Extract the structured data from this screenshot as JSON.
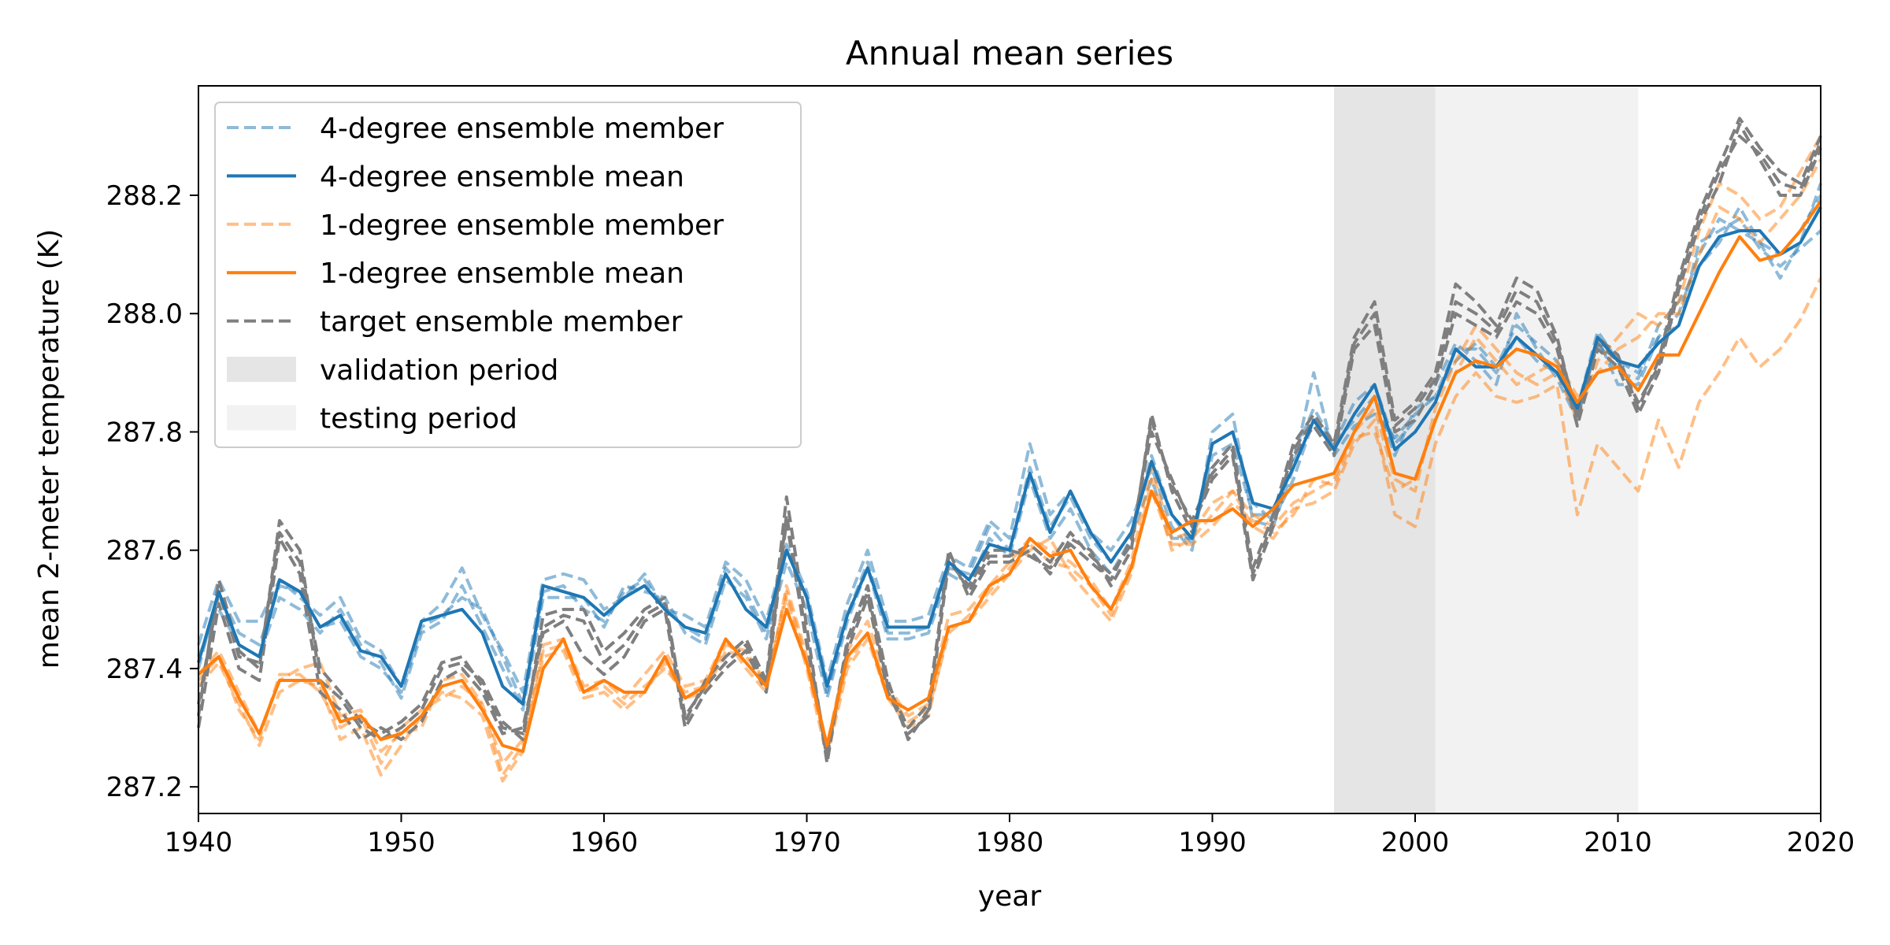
{
  "chart_data": {
    "type": "line",
    "title": "Annual mean series",
    "xlabel": "year",
    "ylabel": "mean 2-meter temperature (K)",
    "xlim": [
      1940,
      2020
    ],
    "ylim": [
      287.155,
      288.385
    ],
    "xticks": [
      1940,
      1950,
      1960,
      1970,
      1980,
      1990,
      2000,
      2010,
      2020
    ],
    "yticks": [
      287.2,
      287.4,
      287.6,
      287.8,
      288.0,
      288.2
    ],
    "xtick_labels": [
      "1940",
      "1950",
      "1960",
      "1970",
      "1980",
      "1990",
      "2000",
      "2010",
      "2020"
    ],
    "ytick_labels": [
      "287.2",
      "287.4",
      "287.6",
      "287.8",
      "288.0",
      "288.2"
    ],
    "grid": false,
    "legend_position": "top-left",
    "shaded_periods": [
      {
        "name": "validation period",
        "x_start": 1996,
        "x_end": 2001,
        "color": "#e5e5e5"
      },
      {
        "name": "testing period",
        "x_start": 2001,
        "x_end": 2011,
        "color": "#f2f2f2"
      }
    ],
    "x_start": 1940,
    "series": [
      {
        "name": "4-degree ensemble member",
        "group": "member4",
        "color": "#1f77b4",
        "opacity": 0.5,
        "dash": true,
        "legend": true,
        "values": [
          287.44,
          287.55,
          287.48,
          287.48,
          287.55,
          287.52,
          287.49,
          287.52,
          287.45,
          287.43,
          287.37,
          287.48,
          287.51,
          287.57,
          287.49,
          287.43,
          287.36,
          287.55,
          287.56,
          287.55,
          287.5,
          287.52,
          287.56,
          287.5,
          287.49,
          287.47,
          287.58,
          287.55,
          287.48,
          287.61,
          287.53,
          287.38,
          287.51,
          287.6,
          287.48,
          287.48,
          287.49,
          287.59,
          287.57,
          287.65,
          287.62,
          287.78,
          287.66,
          287.7,
          287.63,
          287.6,
          287.65,
          287.74,
          287.64,
          287.6,
          287.8,
          287.83,
          287.65,
          287.64,
          287.74,
          287.9,
          287.76,
          287.81,
          287.83,
          287.79,
          287.83,
          287.86,
          287.92,
          287.95,
          287.91,
          287.98,
          287.95,
          287.92,
          287.84,
          287.97,
          287.92,
          287.9,
          287.96,
          287.98,
          288.12,
          288.14,
          288.16,
          288.11,
          288.08,
          288.11,
          288.14
        ]
      },
      {
        "name": "4-degree ensemble member",
        "group": "member4",
        "color": "#1f77b4",
        "opacity": 0.5,
        "dash": true,
        "legend": false,
        "values": [
          287.42,
          287.5,
          287.44,
          287.42,
          287.52,
          287.5,
          287.46,
          287.5,
          287.44,
          287.41,
          287.35,
          287.46,
          287.48,
          287.54,
          287.47,
          287.4,
          287.33,
          287.52,
          287.52,
          287.52,
          287.47,
          287.54,
          287.53,
          287.52,
          287.46,
          287.44,
          287.55,
          287.52,
          287.45,
          287.58,
          287.5,
          287.35,
          287.48,
          287.57,
          287.45,
          287.45,
          287.46,
          287.56,
          287.54,
          287.62,
          287.59,
          287.72,
          287.62,
          287.67,
          287.6,
          287.56,
          287.62,
          287.72,
          287.62,
          287.62,
          287.76,
          287.78,
          287.66,
          287.66,
          287.76,
          287.84,
          287.78,
          287.85,
          287.88,
          287.78,
          287.82,
          287.88,
          287.95,
          287.92,
          287.88,
          288.0,
          287.94,
          287.89,
          287.82,
          287.96,
          287.88,
          287.88,
          287.96,
          288.0,
          288.1,
          288.16,
          288.14,
          288.12,
          288.1,
          288.14,
          288.2
        ]
      },
      {
        "name": "4-degree ensemble member",
        "group": "member4",
        "color": "#1f77b4",
        "opacity": 0.5,
        "dash": true,
        "legend": false,
        "values": [
          287.4,
          287.53,
          287.46,
          287.44,
          287.54,
          287.53,
          287.47,
          287.48,
          287.42,
          287.4,
          287.36,
          287.47,
          287.49,
          287.52,
          287.5,
          287.42,
          287.34,
          287.53,
          287.54,
          287.5,
          287.48,
          287.53,
          287.55,
          287.5,
          287.47,
          287.45,
          287.57,
          287.53,
          287.46,
          287.6,
          287.52,
          287.36,
          287.49,
          287.58,
          287.46,
          287.46,
          287.47,
          287.57,
          287.56,
          287.64,
          287.6,
          287.74,
          287.64,
          287.69,
          287.62,
          287.58,
          287.63,
          287.76,
          287.66,
          287.61,
          287.78,
          287.8,
          287.68,
          287.65,
          287.72,
          287.82,
          287.78,
          287.82,
          287.86,
          287.76,
          287.84,
          287.86,
          287.94,
          287.94,
          287.9,
          287.96,
          287.92,
          287.9,
          287.83,
          287.95,
          287.9,
          287.89,
          287.98,
          288.02,
          288.08,
          288.12,
          288.18,
          288.12,
          288.06,
          288.12,
          288.22
        ]
      },
      {
        "name": "4-degree ensemble mean",
        "group": "mean4",
        "color": "#1f77b4",
        "opacity": 1,
        "dash": false,
        "legend": true,
        "values": [
          287.41,
          287.53,
          287.44,
          287.42,
          287.55,
          287.53,
          287.47,
          287.49,
          287.43,
          287.42,
          287.37,
          287.48,
          287.49,
          287.5,
          287.46,
          287.37,
          287.34,
          287.54,
          287.53,
          287.52,
          287.49,
          287.52,
          287.54,
          287.5,
          287.47,
          287.46,
          287.56,
          287.5,
          287.47,
          287.6,
          287.52,
          287.37,
          287.49,
          287.57,
          287.47,
          287.47,
          287.47,
          287.58,
          287.55,
          287.61,
          287.6,
          287.73,
          287.63,
          287.7,
          287.63,
          287.58,
          287.63,
          287.75,
          287.66,
          287.62,
          287.78,
          287.8,
          287.68,
          287.67,
          287.74,
          287.82,
          287.77,
          287.83,
          287.88,
          287.77,
          287.8,
          287.85,
          287.94,
          287.91,
          287.91,
          287.96,
          287.93,
          287.9,
          287.84,
          287.96,
          287.92,
          287.91,
          287.95,
          287.98,
          288.08,
          288.13,
          288.14,
          288.14,
          288.1,
          288.12,
          288.18
        ]
      },
      {
        "name": "1-degree ensemble member",
        "group": "member1",
        "color": "#ff7f0e",
        "opacity": 0.5,
        "dash": true,
        "legend": true,
        "values": [
          287.37,
          287.41,
          287.34,
          287.27,
          287.36,
          287.38,
          287.37,
          287.28,
          287.3,
          287.22,
          287.27,
          287.32,
          287.36,
          287.35,
          287.32,
          287.21,
          287.26,
          287.42,
          287.43,
          287.35,
          287.36,
          287.33,
          287.36,
          287.41,
          287.35,
          287.36,
          287.43,
          287.42,
          287.38,
          287.52,
          287.4,
          287.25,
          287.4,
          287.45,
          287.35,
          287.3,
          287.32,
          287.47,
          287.48,
          287.52,
          287.56,
          287.6,
          287.62,
          287.56,
          287.52,
          287.48,
          287.56,
          287.72,
          287.6,
          287.62,
          287.66,
          287.7,
          287.64,
          287.62,
          287.67,
          287.68,
          287.7,
          287.78,
          287.82,
          287.66,
          287.64,
          287.78,
          287.86,
          287.9,
          287.86,
          287.85,
          287.86,
          287.88,
          287.66,
          287.78,
          287.74,
          287.7,
          287.82,
          287.74,
          287.85,
          287.9,
          287.96,
          287.91,
          287.94,
          287.99,
          288.06
        ]
      },
      {
        "name": "1-degree ensemble member",
        "group": "member1",
        "color": "#ff7f0e",
        "opacity": 0.5,
        "dash": true,
        "legend": false,
        "values": [
          287.39,
          287.43,
          287.36,
          287.29,
          287.38,
          287.4,
          287.41,
          287.32,
          287.33,
          287.26,
          287.29,
          287.3,
          287.38,
          287.39,
          287.34,
          287.24,
          287.28,
          287.44,
          287.45,
          287.37,
          287.38,
          287.35,
          287.39,
          287.43,
          287.37,
          287.38,
          287.45,
          287.4,
          287.36,
          287.54,
          287.42,
          287.27,
          287.43,
          287.48,
          287.37,
          287.32,
          287.34,
          287.49,
          287.5,
          287.54,
          287.58,
          287.62,
          287.6,
          287.58,
          287.55,
          287.5,
          287.58,
          287.74,
          287.62,
          287.63,
          287.68,
          287.7,
          287.66,
          287.64,
          287.68,
          287.7,
          287.72,
          287.8,
          287.84,
          287.72,
          287.7,
          287.84,
          287.92,
          287.98,
          287.94,
          287.9,
          287.88,
          287.9,
          287.82,
          287.92,
          287.96,
          288.0,
          287.98,
          288.02,
          288.14,
          288.22,
          288.2,
          288.16,
          288.18,
          288.24,
          288.3
        ]
      },
      {
        "name": "1-degree ensemble member",
        "group": "member1",
        "color": "#ff7f0e",
        "opacity": 0.5,
        "dash": true,
        "legend": false,
        "values": [
          287.38,
          287.42,
          287.33,
          287.28,
          287.39,
          287.39,
          287.36,
          287.3,
          287.32,
          287.24,
          287.3,
          287.33,
          287.35,
          287.37,
          287.34,
          287.22,
          287.27,
          287.43,
          287.44,
          287.36,
          287.37,
          287.34,
          287.37,
          287.4,
          287.36,
          287.37,
          287.44,
          287.43,
          287.37,
          287.53,
          287.41,
          287.26,
          287.41,
          287.46,
          287.36,
          287.31,
          287.33,
          287.46,
          287.49,
          287.53,
          287.57,
          287.61,
          287.58,
          287.57,
          287.54,
          287.49,
          287.57,
          287.7,
          287.61,
          287.61,
          287.64,
          287.68,
          287.65,
          287.63,
          287.66,
          287.72,
          287.71,
          287.79,
          287.8,
          287.7,
          287.72,
          287.82,
          287.9,
          287.96,
          287.92,
          287.88,
          287.9,
          287.92,
          287.86,
          287.9,
          287.94,
          287.96,
          288.0,
          288.0,
          288.1,
          288.18,
          288.16,
          288.12,
          288.16,
          288.2,
          288.26
        ]
      },
      {
        "name": "1-degree ensemble mean",
        "group": "mean1",
        "color": "#ff7f0e",
        "opacity": 1,
        "dash": false,
        "legend": true,
        "values": [
          287.39,
          287.42,
          287.35,
          287.29,
          287.38,
          287.38,
          287.38,
          287.31,
          287.32,
          287.28,
          287.29,
          287.32,
          287.37,
          287.38,
          287.33,
          287.27,
          287.26,
          287.4,
          287.45,
          287.36,
          287.38,
          287.36,
          287.36,
          287.42,
          287.35,
          287.37,
          287.45,
          287.41,
          287.37,
          287.5,
          287.41,
          287.27,
          287.42,
          287.46,
          287.35,
          287.33,
          287.35,
          287.47,
          287.48,
          287.54,
          287.56,
          287.62,
          287.59,
          287.6,
          287.54,
          287.5,
          287.57,
          287.7,
          287.63,
          287.65,
          287.65,
          287.67,
          287.64,
          287.67,
          287.71,
          287.72,
          287.73,
          287.8,
          287.86,
          287.73,
          287.72,
          287.82,
          287.9,
          287.92,
          287.91,
          287.94,
          287.93,
          287.91,
          287.85,
          287.9,
          287.91,
          287.87,
          287.93,
          287.93,
          288.0,
          288.07,
          288.13,
          288.09,
          288.1,
          288.14,
          288.19
        ]
      },
      {
        "name": "target ensemble member",
        "group": "target",
        "color": "#7f7f7f",
        "opacity": 1,
        "dash": true,
        "legend": true,
        "values": [
          287.32,
          287.55,
          287.43,
          287.4,
          287.65,
          287.6,
          287.38,
          287.35,
          287.3,
          287.28,
          287.3,
          287.33,
          287.4,
          287.41,
          287.38,
          287.31,
          287.28,
          287.49,
          287.5,
          287.5,
          287.43,
          287.46,
          287.5,
          287.52,
          287.31,
          287.38,
          287.42,
          287.45,
          287.38,
          287.69,
          287.47,
          287.24,
          287.45,
          287.54,
          287.38,
          287.28,
          287.33,
          287.6,
          287.52,
          287.58,
          287.58,
          287.6,
          287.56,
          287.62,
          287.6,
          287.54,
          287.6,
          287.83,
          287.7,
          287.63,
          287.74,
          287.78,
          287.57,
          287.66,
          287.78,
          287.83,
          287.78,
          287.96,
          288.02,
          287.82,
          287.85,
          287.9,
          288.05,
          288.02,
          287.98,
          288.06,
          288.04,
          287.96,
          287.82,
          287.96,
          287.93,
          287.84,
          287.92,
          288.06,
          288.17,
          288.25,
          288.33,
          288.28,
          288.24,
          288.22,
          288.3
        ]
      },
      {
        "name": "target ensemble member",
        "group": "target",
        "color": "#7f7f7f",
        "opacity": 1,
        "dash": true,
        "legend": false,
        "values": [
          287.3,
          287.51,
          287.4,
          287.38,
          287.62,
          287.56,
          287.36,
          287.33,
          287.28,
          287.3,
          287.28,
          287.31,
          287.38,
          287.4,
          287.36,
          287.29,
          287.3,
          287.46,
          287.48,
          287.42,
          287.39,
          287.42,
          287.48,
          287.5,
          287.3,
          287.36,
          287.4,
          287.43,
          287.36,
          287.65,
          287.44,
          287.26,
          287.43,
          287.52,
          287.36,
          287.29,
          287.32,
          287.58,
          287.54,
          287.6,
          287.6,
          287.59,
          287.57,
          287.61,
          287.58,
          287.55,
          287.62,
          287.8,
          287.72,
          287.64,
          287.72,
          287.76,
          287.55,
          287.64,
          287.76,
          287.81,
          287.76,
          287.94,
          287.98,
          287.8,
          287.82,
          287.88,
          288.0,
          287.98,
          287.96,
          288.02,
          288.0,
          287.94,
          287.81,
          287.94,
          287.91,
          287.83,
          287.9,
          288.04,
          288.15,
          288.22,
          288.32,
          288.26,
          288.2,
          288.2,
          288.28
        ]
      },
      {
        "name": "target ensemble member",
        "group": "target",
        "color": "#7f7f7f",
        "opacity": 1,
        "dash": true,
        "legend": false,
        "values": [
          287.34,
          287.53,
          287.42,
          287.41,
          287.63,
          287.58,
          287.4,
          287.36,
          287.31,
          287.29,
          287.31,
          287.34,
          287.41,
          287.42,
          287.37,
          287.3,
          287.29,
          287.47,
          287.49,
          287.48,
          287.41,
          287.44,
          287.49,
          287.51,
          287.32,
          287.37,
          287.41,
          287.44,
          287.37,
          287.66,
          287.45,
          287.25,
          287.44,
          287.53,
          287.37,
          287.3,
          287.34,
          287.59,
          287.53,
          287.59,
          287.59,
          287.61,
          287.58,
          287.63,
          287.59,
          287.56,
          287.61,
          287.82,
          287.71,
          287.65,
          287.73,
          287.77,
          287.56,
          287.65,
          287.77,
          287.82,
          287.77,
          287.95,
          288.0,
          287.81,
          287.84,
          287.89,
          288.02,
          288.0,
          287.97,
          288.04,
          288.02,
          287.95,
          287.83,
          287.95,
          287.92,
          287.85,
          287.91,
          288.05,
          288.16,
          288.24,
          288.3,
          288.27,
          288.22,
          288.21,
          288.29
        ]
      }
    ]
  }
}
